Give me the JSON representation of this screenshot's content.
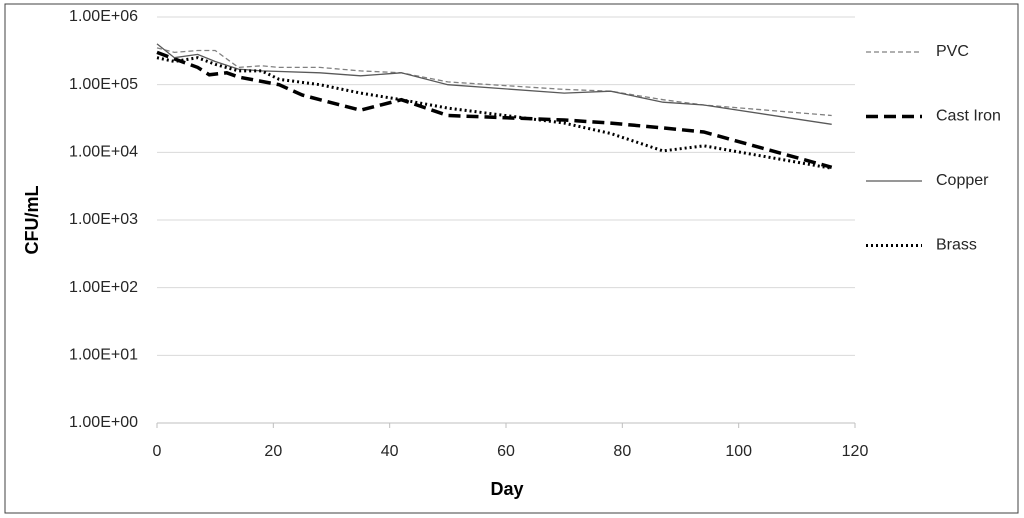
{
  "chart_data": {
    "type": "line",
    "y_label": "CFU/mL",
    "x_label": "Day",
    "xlim": [
      0,
      120
    ],
    "xticks": [
      0,
      20,
      40,
      60,
      80,
      100,
      120
    ],
    "ylim": [
      1,
      1000000
    ],
    "log_y": true,
    "grid": true,
    "yticks": [
      {
        "value": 1,
        "label": "1.00E+00"
      },
      {
        "value": 10,
        "label": "1.00E+01"
      },
      {
        "value": 100,
        "label": "1.00E+02"
      },
      {
        "value": 1000,
        "label": "1.00E+03"
      },
      {
        "value": 10000,
        "label": "1.00E+04"
      },
      {
        "value": 100000,
        "label": "1.00E+05"
      },
      {
        "value": 1000000,
        "label": "1.00E+06"
      }
    ],
    "series": [
      {
        "name": "PVC",
        "color": "#808080",
        "dash": "5,3",
        "width": 1.3,
        "x": [
          0,
          3,
          7,
          10,
          14,
          18,
          21,
          28,
          35,
          42,
          50,
          70,
          78,
          87,
          94,
          116
        ],
        "values": [
          350000,
          300000,
          320000,
          320000,
          180000,
          190000,
          180000,
          180000,
          160000,
          150000,
          110000,
          85000,
          80000,
          60000,
          50000,
          35000
        ]
      },
      {
        "name": "Cast Iron",
        "color": "#000000",
        "dash": "12,6",
        "width": 3.5,
        "x": [
          0,
          3,
          7,
          9,
          12,
          14,
          21,
          25,
          28,
          35,
          42,
          50,
          70,
          78,
          87,
          94,
          116
        ],
        "values": [
          300000,
          240000,
          180000,
          140000,
          150000,
          130000,
          100000,
          70000,
          60000,
          42000,
          60000,
          35000,
          30000,
          27000,
          23000,
          20000,
          6000
        ]
      },
      {
        "name": "Copper",
        "color": "#595959",
        "dash": "",
        "width": 1.3,
        "x": [
          0,
          3,
          7,
          10,
          14,
          18,
          28,
          35,
          42,
          50,
          70,
          78,
          87,
          94,
          116
        ],
        "values": [
          400000,
          250000,
          280000,
          220000,
          170000,
          160000,
          150000,
          135000,
          150000,
          100000,
          75000,
          80000,
          55000,
          50000,
          26000
        ]
      },
      {
        "name": "Brass",
        "color": "#000000",
        "dash": "2,3",
        "width": 3,
        "x": [
          0,
          3,
          7,
          10,
          14,
          18,
          21,
          28,
          35,
          42,
          50,
          70,
          78,
          87,
          94,
          116
        ],
        "values": [
          250000,
          220000,
          250000,
          200000,
          160000,
          160000,
          120000,
          100000,
          75000,
          60000,
          45000,
          27000,
          19000,
          10500,
          12500,
          5800
        ]
      }
    ]
  }
}
